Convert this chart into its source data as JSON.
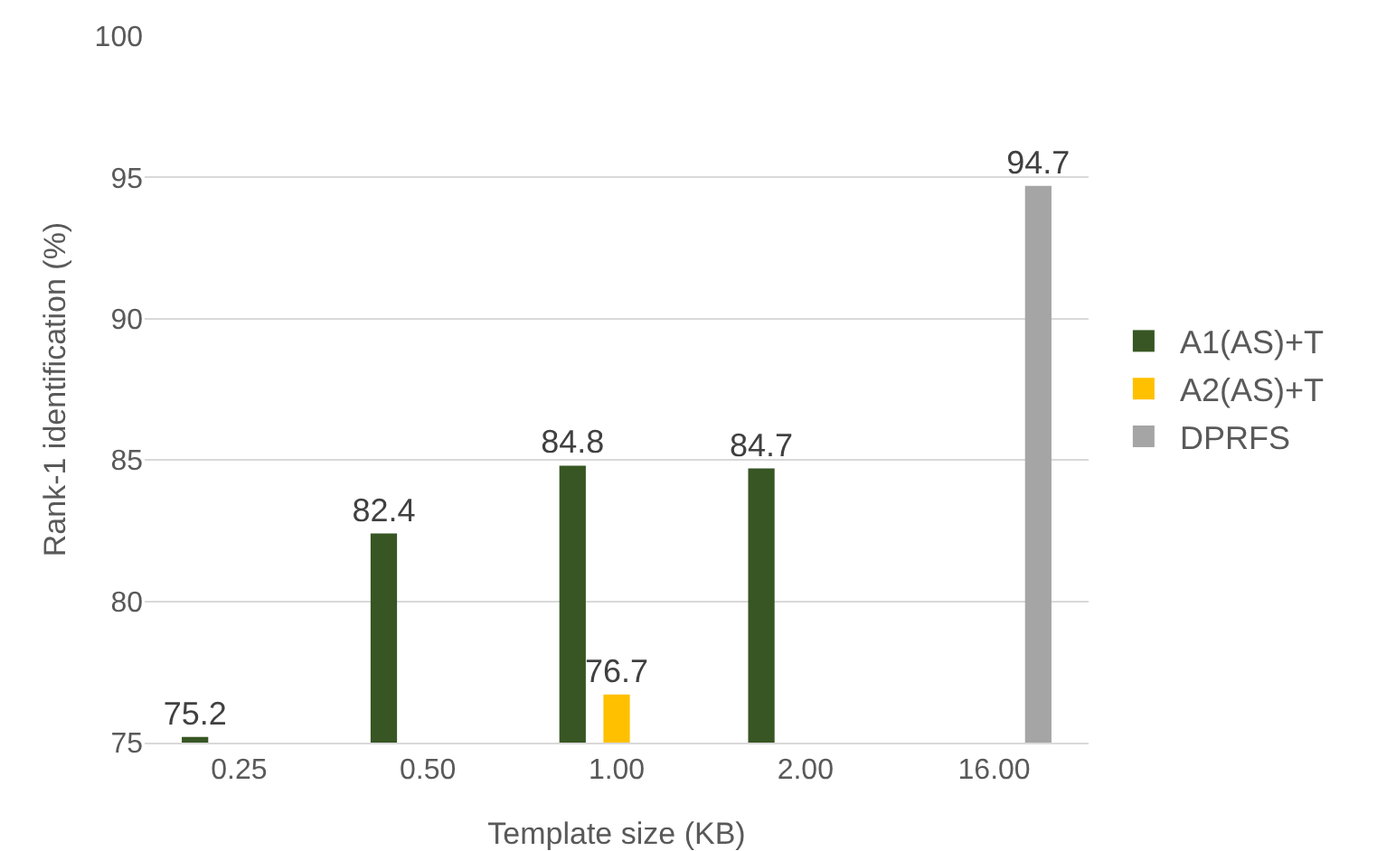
{
  "chart_data": {
    "type": "bar",
    "xlabel": "Template size (KB)",
    "ylabel": "Rank-1 identification (%)",
    "categories": [
      "0.25",
      "0.50",
      "1.00",
      "2.00",
      "16.00"
    ],
    "series": [
      {
        "name": "A1(AS)+T",
        "color": "#375623",
        "values": [
          75.2,
          82.4,
          84.8,
          84.7,
          null
        ],
        "value_labels": [
          "75.2",
          "82.4",
          "84.8",
          "84.7",
          null
        ]
      },
      {
        "name": "A2(AS)+T",
        "color": "#ffc000",
        "values": [
          null,
          null,
          76.7,
          null,
          null
        ],
        "value_labels": [
          null,
          null,
          "76.7",
          null,
          null
        ]
      },
      {
        "name": "DPRFS",
        "color": "#a5a5a5",
        "values": [
          null,
          null,
          null,
          null,
          94.7
        ],
        "value_labels": [
          null,
          null,
          null,
          null,
          "94.7"
        ]
      }
    ],
    "ylim": [
      75,
      100
    ],
    "yticks": [
      75,
      80,
      85,
      90,
      95,
      100
    ],
    "grid": "y",
    "legend": "right"
  }
}
